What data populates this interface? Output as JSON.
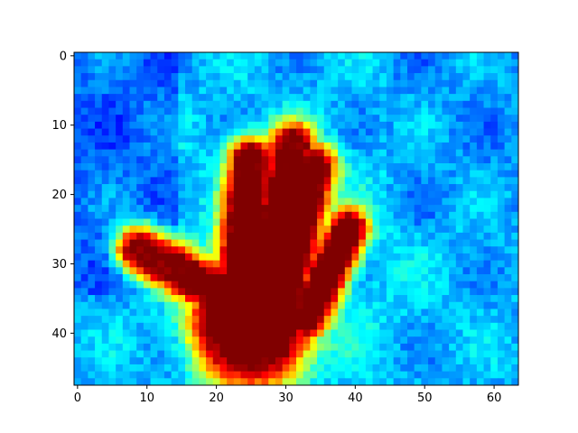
{
  "chart_data": {
    "type": "heatmap",
    "title": "",
    "xlabel": "",
    "ylabel": "",
    "colormap": "jet",
    "grid": false,
    "legend": "none",
    "columns": 64,
    "rows": 48,
    "xlim": [
      -0.5,
      63.5
    ],
    "ylim": [
      47.5,
      -0.5
    ],
    "y_axis_inverted": true,
    "value_range": [
      0,
      1
    ],
    "xticks": [
      0,
      10,
      20,
      30,
      40,
      50,
      60
    ],
    "yticks": [
      0,
      10,
      20,
      30,
      40
    ],
    "xtick_labels": [
      "0",
      "10",
      "20",
      "30",
      "40",
      "50",
      "60"
    ],
    "ytick_labels": [
      "0",
      "10",
      "20",
      "30",
      "40"
    ],
    "description_of_values": "Thermal-style intensity image of an open hand; background values ~0.15-0.45 (blue/cyan), hand region rising to ~0.9-1.0 (red/dark red) in the palm around x 18-32, y 28-46."
  }
}
